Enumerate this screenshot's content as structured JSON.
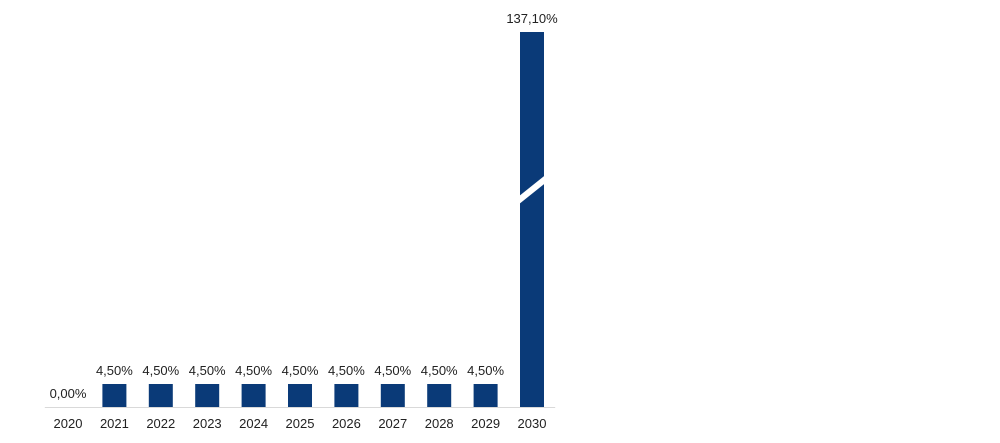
{
  "chart_data": {
    "type": "bar",
    "categories": [
      "2020",
      "2021",
      "2022",
      "2023",
      "2024",
      "2025",
      "2026",
      "2027",
      "2028",
      "2029",
      "2030"
    ],
    "values": [
      0,
      4.5,
      4.5,
      4.5,
      4.5,
      4.5,
      4.5,
      4.5,
      4.5,
      4.5,
      137.1
    ],
    "data_labels": [
      "0,00%",
      "4,50%",
      "4,50%",
      "4,50%",
      "4,50%",
      "4,50%",
      "4,50%",
      "4,50%",
      "4,50%",
      "4,50%",
      "137,10%"
    ],
    "title": "",
    "xlabel": "",
    "ylabel": "",
    "axis_break": true,
    "bar_color": "#0a3a78",
    "grid": false,
    "legend": "none"
  }
}
